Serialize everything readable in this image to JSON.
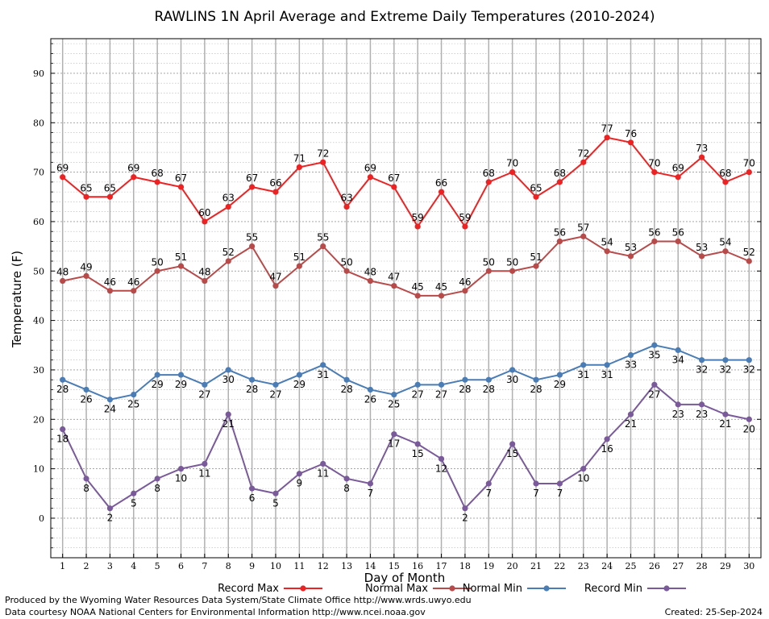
{
  "chart_data": {
    "type": "line",
    "title": "RAWLINS 1N April Average and Extreme Daily Temperatures (2010-2024)",
    "xlabel": "Day of Month",
    "ylabel": "Temperature (F)",
    "x": [
      1,
      2,
      3,
      4,
      5,
      6,
      7,
      8,
      9,
      10,
      11,
      12,
      13,
      14,
      15,
      16,
      17,
      18,
      19,
      20,
      21,
      22,
      23,
      24,
      25,
      26,
      27,
      28,
      29,
      30
    ],
    "xlim": [
      0.5,
      30.5
    ],
    "ylim": [
      -8,
      97
    ],
    "yticks": [
      0,
      10,
      20,
      30,
      40,
      50,
      60,
      70,
      80,
      90
    ],
    "grid": true,
    "legend_position": "bottom",
    "series": [
      {
        "name": "Record Max",
        "color": "#ee2222",
        "label_position": "above",
        "values": [
          69,
          65,
          65,
          69,
          68,
          67,
          60,
          63,
          67,
          66,
          71,
          72,
          63,
          69,
          67,
          59,
          66,
          59,
          68,
          70,
          65,
          68,
          72,
          77,
          76,
          70,
          69,
          73,
          68,
          70
        ]
      },
      {
        "name": "Normal Max",
        "color": "#b84a4a",
        "label_position": "above",
        "values": [
          48,
          49,
          46,
          46,
          50,
          51,
          48,
          52,
          55,
          47,
          51,
          55,
          50,
          48,
          47,
          45,
          45,
          46,
          50,
          50,
          51,
          56,
          57,
          54,
          53,
          56,
          56,
          53,
          54,
          52
        ]
      },
      {
        "name": "Normal Min",
        "color": "#4a7db5",
        "label_position": "below",
        "values": [
          28,
          26,
          24,
          25,
          29,
          29,
          27,
          30,
          28,
          27,
          29,
          31,
          28,
          26,
          25,
          27,
          27,
          28,
          28,
          30,
          28,
          29,
          31,
          31,
          33,
          35,
          34,
          32,
          32,
          32
        ]
      },
      {
        "name": "Record Min",
        "color": "#7a5a9a",
        "label_position": "below",
        "values": [
          18,
          8,
          2,
          5,
          8,
          10,
          11,
          21,
          6,
          5,
          9,
          11,
          8,
          7,
          17,
          15,
          12,
          2,
          7,
          15,
          7,
          7,
          10,
          16,
          21,
          27,
          23,
          23,
          21,
          20
        ]
      }
    ]
  },
  "footer": {
    "produced_by": "Produced by the Wyoming Water Resources Data System/State Climate Office http://www.wrds.uwyo.edu",
    "data_courtesy": "Data courtesy NOAA National Centers for Environmental Information http://www.ncei.noaa.gov",
    "created": "Created:  25-Sep-2024"
  }
}
